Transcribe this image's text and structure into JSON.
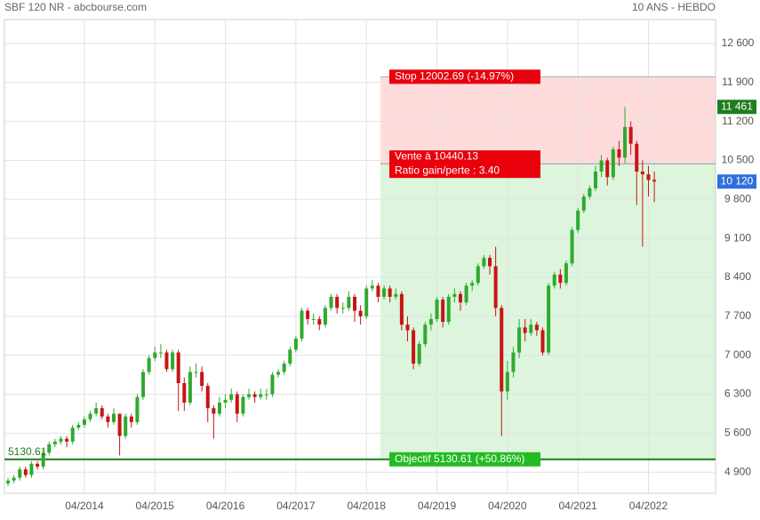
{
  "chart_data": {
    "type": "candlestick",
    "title": "SBF 120 NR - abcbourse.com",
    "period": "10 ANS - HEBDO",
    "categories": [
      null,
      null,
      null,
      null,
      null,
      null,
      null,
      null,
      null,
      null,
      null,
      null,
      null,
      "04/2014",
      null,
      null,
      null,
      null,
      null,
      null,
      null,
      null,
      null,
      null,
      null,
      "04/2015",
      null,
      null,
      null,
      null,
      null,
      null,
      null,
      null,
      null,
      null,
      null,
      "04/2016",
      null,
      null,
      null,
      null,
      null,
      null,
      null,
      null,
      null,
      null,
      null,
      "04/2017",
      null,
      null,
      null,
      null,
      null,
      null,
      null,
      null,
      null,
      null,
      null,
      "04/2018",
      null,
      null,
      null,
      null,
      null,
      null,
      null,
      null,
      null,
      null,
      null,
      "04/2019",
      null,
      null,
      null,
      null,
      null,
      null,
      null,
      null,
      null,
      null,
      null,
      "04/2020",
      null,
      null,
      null,
      null,
      null,
      null,
      null,
      null,
      null,
      null,
      null,
      "04/2021",
      null,
      null,
      null,
      null,
      null,
      null,
      null,
      null,
      null,
      null,
      null,
      "04/2022",
      null
    ],
    "open": [
      4700,
      4750,
      4800,
      4950,
      4850,
      5050,
      5000,
      5250,
      5400,
      5450,
      5500,
      5450,
      5700,
      5750,
      5850,
      5950,
      6050,
      5900,
      5800,
      5950,
      5550,
      5900,
      5800,
      6250,
      6700,
      6950,
      7050,
      7050,
      6750,
      7050,
      6500,
      6150,
      6700,
      6700,
      6450,
      6050,
      5950,
      6150,
      6200,
      6300,
      5950,
      6250,
      6300,
      6250,
      6300,
      6300,
      6650,
      6700,
      6850,
      7100,
      7300,
      7800,
      7650,
      7650,
      7550,
      7850,
      8050,
      7850,
      7850,
      8050,
      7800,
      7700,
      8200,
      8250,
      8050,
      8200,
      8050,
      8100,
      7550,
      7450,
      6850,
      7200,
      7550,
      7650,
      8000,
      7600,
      8050,
      8100,
      7950,
      8250,
      8300,
      8600,
      8750,
      8600,
      7850,
      6350,
      6700,
      7050,
      7500,
      7400,
      7550,
      7450,
      7050,
      8250,
      8450,
      8300,
      8650,
      9250,
      9600,
      9850,
      10000,
      10300,
      10500,
      10200,
      10700,
      10550,
      11100,
      10800,
      10300,
      10250,
      10150
    ],
    "high": [
      4800,
      4850,
      5000,
      5000,
      5100,
      5100,
      5300,
      5450,
      5500,
      5550,
      5550,
      5750,
      5800,
      5900,
      6000,
      6150,
      6100,
      5950,
      6050,
      5950,
      5950,
      5950,
      6300,
      6750,
      7000,
      7150,
      7200,
      7100,
      7100,
      7100,
      6600,
      6800,
      6850,
      6800,
      6500,
      6100,
      6250,
      6300,
      6400,
      6350,
      6300,
      6400,
      6350,
      6400,
      6400,
      6700,
      6750,
      6900,
      7150,
      7350,
      7850,
      7850,
      7750,
      7700,
      7900,
      8100,
      8100,
      7950,
      8150,
      8100,
      7900,
      8250,
      8350,
      8300,
      8250,
      8250,
      8200,
      8150,
      7700,
      7500,
      7250,
      7600,
      7750,
      8050,
      8050,
      8100,
      8200,
      8150,
      8300,
      8350,
      8650,
      8800,
      8800,
      8950,
      7900,
      6900,
      7150,
      7650,
      7650,
      7650,
      7600,
      7500,
      8300,
      8500,
      8550,
      8700,
      9300,
      9650,
      9900,
      10050,
      10400,
      10600,
      10550,
      10750,
      10850,
      11461,
      11200,
      10850,
      10500,
      10400,
      10300
    ],
    "low": [
      4650,
      4700,
      4750,
      4800,
      4800,
      4950,
      4950,
      5200,
      5350,
      5400,
      5350,
      5400,
      5650,
      5700,
      5800,
      5900,
      5850,
      5700,
      5750,
      5200,
      5500,
      5700,
      5750,
      6200,
      6650,
      6900,
      6950,
      6700,
      6700,
      6000,
      6000,
      6100,
      6600,
      6350,
      5800,
      5500,
      5900,
      6050,
      6150,
      5800,
      5900,
      6200,
      6150,
      6200,
      6200,
      6250,
      6600,
      6650,
      6800,
      7050,
      7250,
      7550,
      7550,
      7450,
      7500,
      7800,
      7750,
      7750,
      7800,
      7600,
      7550,
      7650,
      8150,
      7950,
      8000,
      7950,
      8000,
      7450,
      7250,
      6750,
      6800,
      7150,
      7450,
      7600,
      7500,
      7550,
      7950,
      7800,
      7900,
      8150,
      8250,
      8550,
      8450,
      7700,
      5550,
      6200,
      6600,
      6950,
      7250,
      7350,
      7350,
      7000,
      7000,
      8200,
      8200,
      8250,
      8600,
      9200,
      9550,
      9800,
      9950,
      10200,
      10050,
      10150,
      10400,
      10450,
      10600,
      9700,
      8950,
      9850,
      9750
    ],
    "close": [
      4750,
      4800,
      4950,
      4850,
      5050,
      5000,
      5250,
      5400,
      5450,
      5500,
      5450,
      5700,
      5750,
      5850,
      5950,
      6050,
      5900,
      5800,
      5950,
      5550,
      5900,
      5800,
      6250,
      6700,
      6950,
      7050,
      7050,
      6750,
      7050,
      6500,
      6150,
      6700,
      6700,
      6450,
      6050,
      5950,
      6150,
      6200,
      6300,
      5950,
      6250,
      6300,
      6250,
      6300,
      6300,
      6650,
      6700,
      6850,
      7100,
      7300,
      7800,
      7650,
      7650,
      7550,
      7850,
      8050,
      7850,
      7850,
      8050,
      7800,
      7700,
      8200,
      8250,
      8050,
      8200,
      8050,
      8100,
      7550,
      7450,
      6850,
      7200,
      7550,
      7650,
      8000,
      7600,
      8050,
      8100,
      7950,
      8250,
      8300,
      8600,
      8750,
      8600,
      7850,
      6350,
      6700,
      7050,
      7500,
      7400,
      7550,
      7450,
      7050,
      8250,
      8450,
      8300,
      8650,
      9250,
      9600,
      9850,
      10000,
      10300,
      10500,
      10200,
      10700,
      10550,
      11100,
      10800,
      10300,
      10250,
      10150,
      10120
    ],
    "up_color": "#2eaa2e",
    "down_color": "#c81414",
    "ylim": [
      4520,
      13030
    ],
    "yticks": [
      {
        "value": 4900,
        "label": "4 900"
      },
      {
        "value": 5600,
        "label": "5 600"
      },
      {
        "value": 6300,
        "label": "6 300"
      },
      {
        "value": 7000,
        "label": "7 000"
      },
      {
        "value": 7700,
        "label": "7 700"
      },
      {
        "value": 8400,
        "label": "8 400"
      },
      {
        "value": 9100,
        "label": "9 100"
      },
      {
        "value": 9800,
        "label": "9 800"
      },
      {
        "value": 10500,
        "label": "10 500"
      },
      {
        "value": 11200,
        "label": "11 200"
      },
      {
        "value": 11900,
        "label": "11 900"
      },
      {
        "value": 12600,
        "label": "12 600"
      }
    ],
    "grid": true,
    "stop": {
      "value": 12002.69,
      "label": "Stop 12002.69 (-14.97%)"
    },
    "entry": {
      "value": 10440.13,
      "label": "Vente à 10440.13",
      "ratio_label": "Ratio gain/perte : 3.40"
    },
    "target": {
      "value": 5130.61,
      "label": "Objectif 5130.61 (+50.86%)"
    },
    "badges": [
      {
        "value": 11461,
        "label": "11 461",
        "color": "#1e7d1e"
      },
      {
        "value": 10120,
        "label": "10 120",
        "color": "#2e6fe0"
      }
    ]
  }
}
